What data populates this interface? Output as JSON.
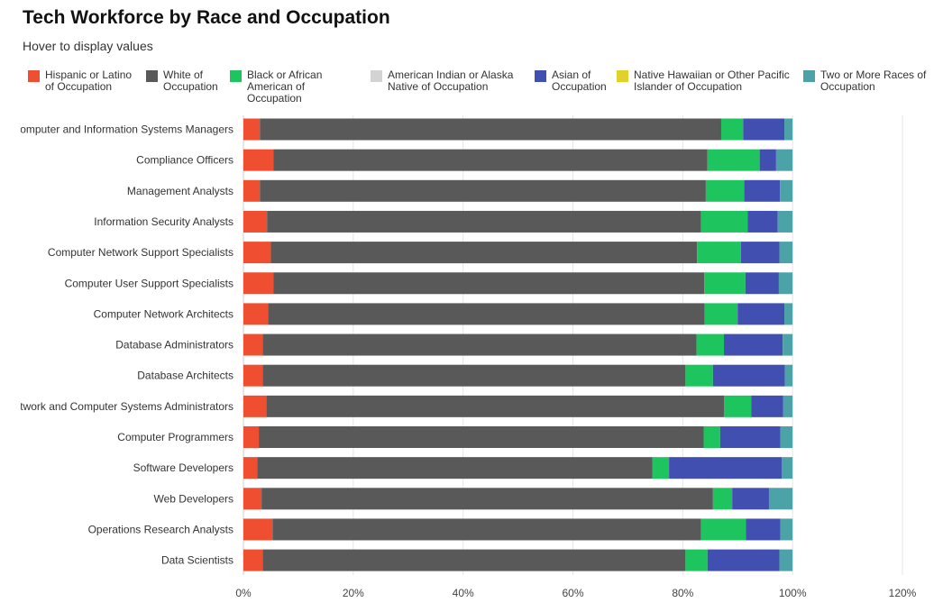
{
  "header": {
    "title": "Tech Workforce by Race and Occupation",
    "subtitle": "Hover to display values"
  },
  "chart_data": {
    "type": "bar",
    "orientation": "horizontal",
    "stacked": true,
    "title": "Tech Workforce by Race and Occupation",
    "xlim": [
      0,
      120
    ],
    "x_ticks": [
      "0%",
      "20%",
      "40%",
      "60%",
      "80%",
      "100%",
      "120%"
    ],
    "x_tick_values": [
      0,
      20,
      40,
      60,
      80,
      100,
      120
    ],
    "grid": true,
    "legend_position": "top",
    "categories": [
      "Computer and Information Systems Managers",
      "Compliance Officers",
      "Management Analysts",
      "Information Security Analysts",
      "Computer Network Support Specialists",
      "Computer User Support Specialists",
      "Computer Network Architects",
      "Database Administrators",
      "Database Architects",
      "Network and Computer Systems Administrators",
      "Computer Programmers",
      "Software Developers",
      "Web Developers",
      "Operations Research Analysts",
      "Data Scientists"
    ],
    "series": [
      {
        "name": "Hispanic or Latino of Occupation",
        "color": "#f04e30",
        "values": [
          3.0,
          5.5,
          3.0,
          4.3,
          5.0,
          5.5,
          4.5,
          3.5,
          3.5,
          4.2,
          2.8,
          2.5,
          3.3,
          5.3,
          3.5
        ]
      },
      {
        "name": "White of Occupation",
        "color": "#595959",
        "values": [
          84.0,
          79.0,
          81.2,
          79.0,
          77.6,
          78.4,
          79.5,
          79.0,
          77.0,
          83.3,
          81.0,
          72.0,
          82.2,
          78.0,
          77.0
        ]
      },
      {
        "name": "Black or African American of Occupation",
        "color": "#1ec55f",
        "values": [
          4.0,
          9.5,
          7.0,
          8.5,
          8.0,
          7.5,
          6.0,
          5.0,
          5.0,
          5.0,
          3.0,
          3.0,
          3.5,
          8.2,
          4.0
        ]
      },
      {
        "name": "American Indian or Alaska Native of Occupation",
        "color": "#d3d3d3",
        "values": [
          0,
          0,
          0,
          0,
          0,
          0,
          0,
          0,
          0,
          0,
          0,
          0,
          0,
          0,
          0
        ]
      },
      {
        "name": "Asian of Occupation",
        "color": "#4150b0",
        "values": [
          7.5,
          3.0,
          6.5,
          5.5,
          7.0,
          6.1,
          8.5,
          10.7,
          13.1,
          5.8,
          11.0,
          20.5,
          6.7,
          6.3,
          13.1
        ]
      },
      {
        "name": "Native Hawaiian or Other Pacific Islander of Occupation",
        "color": "#e0d12d",
        "values": [
          0,
          0,
          0,
          0,
          0,
          0,
          0,
          0,
          0,
          0,
          0,
          0,
          0,
          0,
          0
        ]
      },
      {
        "name": "Two or More Races of Occupation",
        "color": "#4ba3a8",
        "values": [
          1.5,
          3.0,
          2.3,
          2.7,
          2.4,
          2.5,
          1.5,
          1.8,
          1.4,
          1.7,
          2.2,
          2.0,
          4.3,
          2.2,
          2.4
        ]
      }
    ]
  }
}
